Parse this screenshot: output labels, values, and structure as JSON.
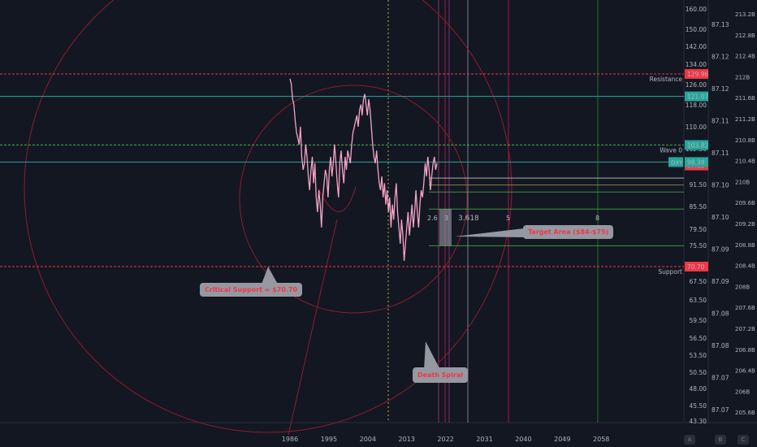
{
  "chart_data": {
    "type": "line",
    "series": [
      {
        "values": [
          128,
          126,
          120,
          118,
          112,
          108,
          106,
          104,
          110,
          100,
          96,
          98,
          104,
          100,
          94,
          90,
          96,
          100,
          92,
          98,
          88,
          84,
          90,
          86,
          80,
          88,
          92,
          96,
          94,
          88,
          96,
          100,
          94,
          98,
          104,
          98,
          92,
          88,
          98,
          102,
          96,
          92,
          100,
          96,
          102,
          100,
          98,
          104,
          108,
          110,
          112,
          114,
          110,
          116,
          118,
          114,
          120,
          122,
          118,
          114,
          120,
          116,
          110,
          104,
          100,
          98,
          102,
          96,
          92,
          90,
          94,
          88,
          92,
          86,
          90,
          84,
          88,
          80,
          86,
          82,
          88,
          92,
          84,
          80,
          76,
          82,
          78,
          72,
          76,
          80,
          84,
          78,
          82,
          86,
          80,
          84,
          90,
          84,
          80,
          86,
          90,
          88,
          92,
          98,
          94,
          100,
          96,
          90,
          94,
          98,
          100,
          96,
          98
        ]
      }
    ],
    "xtick_labels": [
      "1986",
      "1995",
      "2004",
      "2013",
      "2022",
      "2031",
      "2040",
      "2049",
      "2058"
    ],
    "ytick_labels": [
      "160.00",
      "150.00",
      "142.00",
      "134.00",
      "126.00",
      "118.00",
      "110.00",
      "102.50",
      "91.50",
      "85.50",
      "79.50",
      "75.50",
      "67.50",
      "63.50",
      "59.50",
      "56.50",
      "53.50",
      "50.50",
      "48.00",
      "45.50",
      "43.30"
    ],
    "y_scale": "log",
    "price_tags": {
      "resistance": "129.96",
      "green_upper": "121.07",
      "wave_zero": "103.82",
      "dxy_label": "DXY",
      "dxy_value": "98.38",
      "last_value": "97.33",
      "support": "70.70"
    },
    "level_labels": {
      "resistance": "Resistance",
      "wave_zero": "Wave 0",
      "support": "Support"
    },
    "fib_labels": {
      "left": "2.6",
      "mid": "3",
      "ratio": "3.618",
      "five": "5",
      "eight": "8"
    },
    "right_axis_1": [
      "87.13",
      "87.12",
      "87.12",
      "87.11",
      "87.11",
      "87.10",
      "87.10",
      "87.09",
      "87.09",
      "87.08",
      "87.08",
      "87.07",
      "87.07"
    ],
    "right_axis_2": [
      "213.2B",
      "212.8B",
      "212.4B",
      "212B",
      "211.6B",
      "211.2B",
      "210.8B",
      "210.4B",
      "210B",
      "209.6B",
      "209.2B",
      "208.8B",
      "208.4B",
      "208B",
      "207.6B",
      "207.2B",
      "206.8B",
      "206.4B",
      "206B",
      "205.6B"
    ],
    "annotations": {
      "critical_support": "Critical Support = $70.70",
      "target_area": "Target Area ($84-$75)",
      "death_spiral": "Death Spiral"
    },
    "colors": {
      "background": "#131722",
      "price_line": "#f4a3c4",
      "resistance": "#f23645",
      "green_level": "#26a69a",
      "wave_level": "#4caf50",
      "dxy_tag": "#26a69a"
    }
  },
  "axis_buttons": [
    "A",
    "B",
    "C"
  ]
}
